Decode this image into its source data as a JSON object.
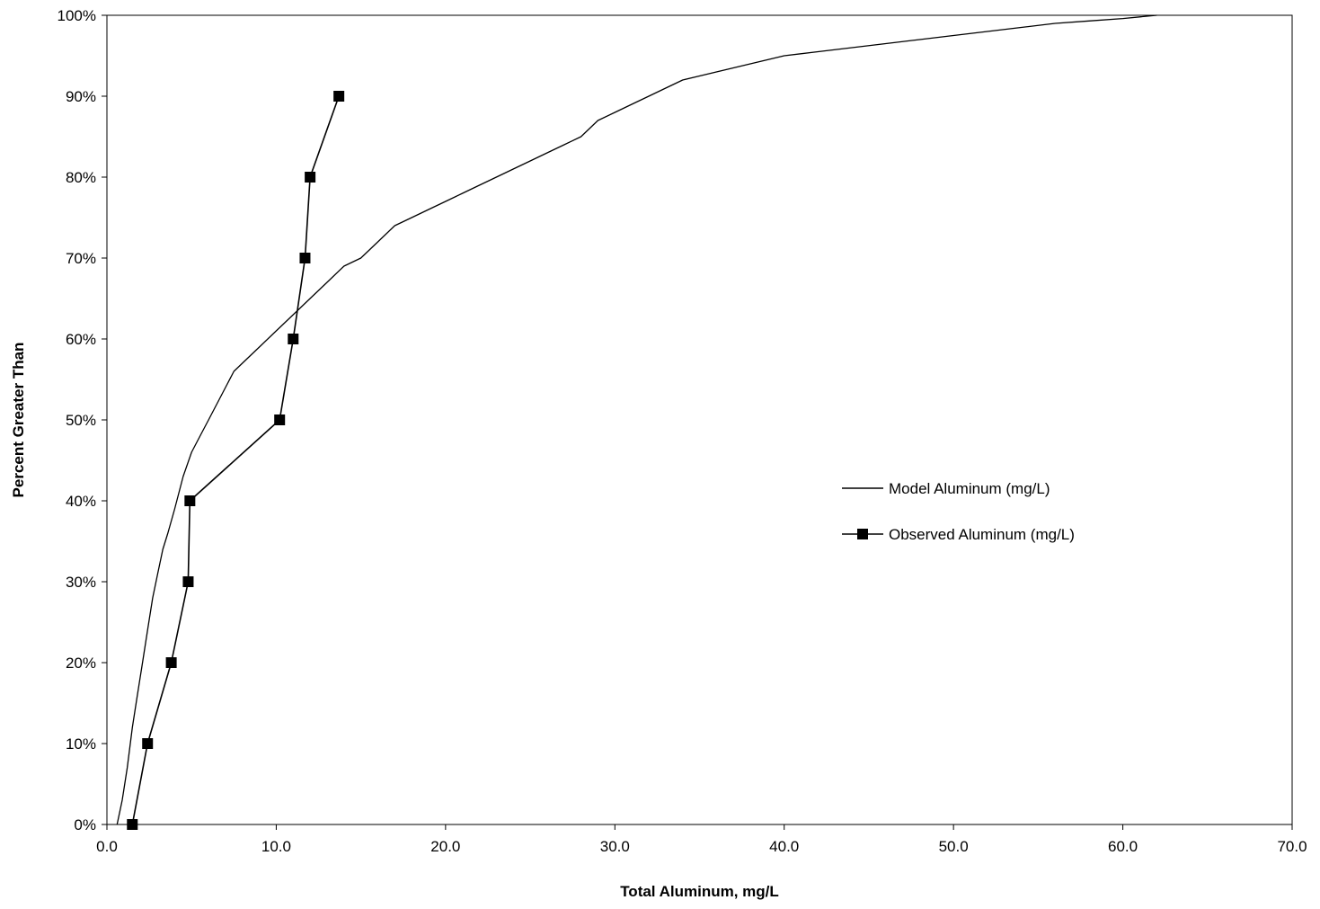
{
  "chart_data": {
    "type": "line",
    "title": "",
    "xlabel": "Total Aluminum, mg/L",
    "ylabel": "Percent Greater Than",
    "xlim": [
      0,
      70
    ],
    "ylim": [
      0,
      100
    ],
    "x_ticks": [
      0,
      10,
      20,
      30,
      40,
      50,
      60,
      70
    ],
    "y_ticks": [
      0,
      10,
      20,
      30,
      40,
      50,
      60,
      70,
      80,
      90,
      100
    ],
    "x_tick_labels": [
      "0.0",
      "10.0",
      "20.0",
      "30.0",
      "40.0",
      "50.0",
      "60.0",
      "70.0"
    ],
    "y_tick_labels": [
      "0%",
      "10%",
      "20%",
      "30%",
      "40%",
      "50%",
      "60%",
      "70%",
      "80%",
      "90%",
      "100%"
    ],
    "grid": false,
    "legend_position": "right-center",
    "series": [
      {
        "name": "Model Aluminum (mg/L)",
        "style": "line",
        "color": "#000000",
        "x": [
          0.6,
          0.9,
          1.2,
          1.5,
          1.8,
          2.1,
          2.4,
          2.7,
          3.0,
          3.3,
          3.6,
          4.0,
          4.5,
          5.0,
          5.5,
          6.0,
          6.5,
          7.0,
          7.5,
          8.0,
          9.0,
          10.0,
          11.0,
          12.0,
          13.0,
          14.0,
          15.0,
          16.0,
          17.0,
          18.0,
          19.0,
          20.0,
          21.0,
          22.0,
          23.0,
          24.0,
          25.0,
          26.0,
          27.0,
          28.0,
          29.0,
          30.0,
          31.0,
          32.0,
          33.0,
          34.0,
          35.0,
          36.0,
          37.0,
          38.0,
          39.0,
          40.0,
          42.0,
          44.0,
          46.0,
          48.0,
          50.0,
          52.0,
          54.0,
          56.0,
          58.0,
          60.0,
          62.0
        ],
        "values": [
          0,
          3,
          7,
          12,
          16,
          20,
          24,
          28,
          31,
          34,
          36,
          39,
          43,
          46,
          48,
          50,
          52,
          54,
          56,
          57,
          59,
          61,
          63,
          65,
          67,
          69,
          70,
          72,
          74,
          75,
          76,
          77,
          78,
          79,
          80,
          81,
          82,
          83,
          84,
          85,
          87,
          88,
          89,
          90,
          91,
          92,
          92.5,
          93,
          93.5,
          94,
          94.5,
          95,
          95.5,
          96,
          96.5,
          97,
          97.5,
          98,
          98.5,
          99,
          99.3,
          99.6,
          100
        ]
      },
      {
        "name": "Observed Aluminum (mg/L)",
        "style": "line-marker",
        "marker": "square",
        "color": "#000000",
        "x": [
          1.5,
          2.4,
          3.8,
          4.8,
          4.9,
          10.2,
          11.0,
          11.7,
          12.0,
          13.7
        ],
        "values": [
          0,
          10,
          20,
          30,
          40,
          50,
          60,
          70,
          80,
          90
        ]
      }
    ]
  }
}
